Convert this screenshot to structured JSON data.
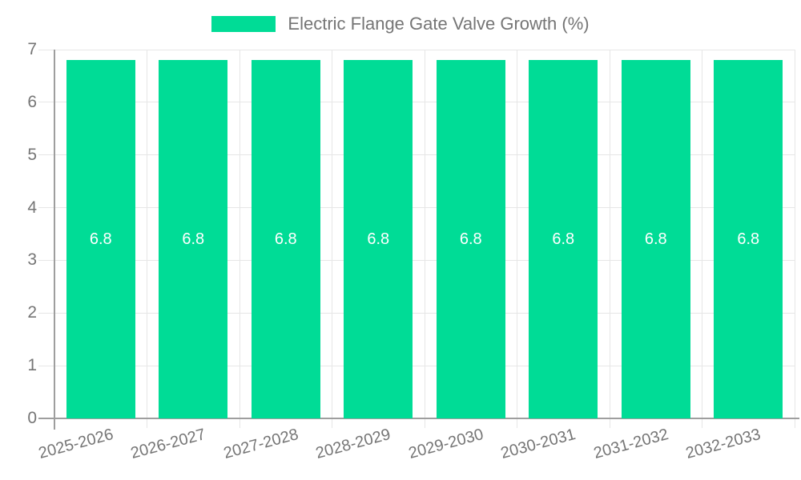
{
  "chart_data": {
    "type": "bar",
    "title": "Electric Flange Gate Valve Growth (%)",
    "categories": [
      "2025-2026",
      "2026-2027",
      "2027-2028",
      "2028-2029",
      "2029-2030",
      "2030-2031",
      "2031-2032",
      "2032-2033"
    ],
    "series": [
      {
        "name": "Electric Flange Gate Valve Growth (%)",
        "values": [
          6.8,
          6.8,
          6.8,
          6.8,
          6.8,
          6.8,
          6.8,
          6.8
        ]
      }
    ],
    "bar_labels": [
      "6.8",
      "6.8",
      "6.8",
      "6.8",
      "6.8",
      "6.8",
      "6.8",
      "6.8"
    ],
    "xlabel": "",
    "ylabel": "",
    "ylim": [
      0,
      7
    ],
    "yticks": [
      "0",
      "1",
      "2",
      "3",
      "4",
      "5",
      "6",
      "7"
    ],
    "grid": true,
    "legend_position": "top-center",
    "colors": {
      "bar": "#00DC96",
      "bar_label": "#ffffff",
      "grid_line": "#e6e6e6",
      "axis_line": "#9e9e9e",
      "tick_text": "#757575",
      "legend_text": "#757575",
      "background": "#ffffff"
    }
  }
}
